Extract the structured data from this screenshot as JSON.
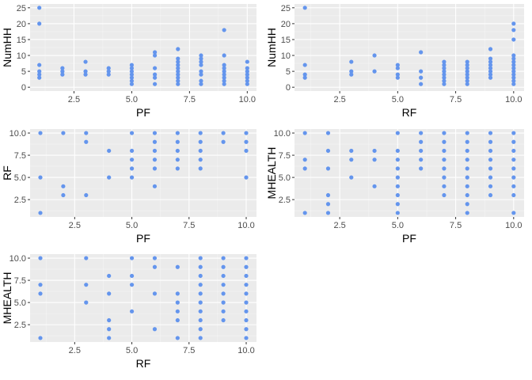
{
  "colors": {
    "panel_bg": "#EBEBEB",
    "grid_major": "#FFFFFF",
    "grid_minor": "#F5F5F5",
    "point": "#6495ED",
    "tick_text": "#4D4D4D",
    "axis_title": "#000000"
  },
  "chart_data": [
    {
      "type": "scatter",
      "xlabel": "PF",
      "ylabel": "NumHH",
      "xlim": [
        0.6,
        10.4
      ],
      "ylim": [
        -1.2,
        26.2
      ],
      "xticks": [
        2.5,
        5.0,
        7.5,
        10.0
      ],
      "xtick_labels": [
        "2.5",
        "5.0",
        "7.5",
        "10.0"
      ],
      "yticks": [
        0,
        5,
        10,
        15,
        20,
        25
      ],
      "ytick_labels": [
        "0",
        "5",
        "10",
        "15",
        "20",
        "25"
      ],
      "points": [
        [
          1,
          25
        ],
        [
          1,
          20
        ],
        [
          1,
          7
        ],
        [
          1,
          5
        ],
        [
          1,
          4
        ],
        [
          1,
          3
        ],
        [
          2,
          6
        ],
        [
          2,
          5
        ],
        [
          2,
          4
        ],
        [
          3,
          8
        ],
        [
          3,
          5
        ],
        [
          3,
          4
        ],
        [
          4,
          6
        ],
        [
          4,
          5
        ],
        [
          4,
          4
        ],
        [
          5,
          7
        ],
        [
          5,
          6
        ],
        [
          5,
          5
        ],
        [
          5,
          4
        ],
        [
          5,
          3
        ],
        [
          5,
          2
        ],
        [
          5,
          1
        ],
        [
          6,
          11
        ],
        [
          6,
          10
        ],
        [
          6,
          6
        ],
        [
          6,
          4
        ],
        [
          6,
          3
        ],
        [
          6,
          1
        ],
        [
          7,
          12
        ],
        [
          7,
          9
        ],
        [
          7,
          8
        ],
        [
          7,
          7
        ],
        [
          7,
          6
        ],
        [
          7,
          5
        ],
        [
          7,
          4
        ],
        [
          7,
          3
        ],
        [
          7,
          2
        ],
        [
          7,
          1
        ],
        [
          8,
          10
        ],
        [
          8,
          9
        ],
        [
          8,
          8
        ],
        [
          8,
          7
        ],
        [
          8,
          5
        ],
        [
          8,
          4
        ],
        [
          8,
          2
        ],
        [
          8,
          1
        ],
        [
          9,
          18
        ],
        [
          9,
          10
        ],
        [
          9,
          7
        ],
        [
          9,
          6
        ],
        [
          9,
          5
        ],
        [
          9,
          4
        ],
        [
          9,
          3
        ],
        [
          9,
          2
        ],
        [
          9,
          1
        ],
        [
          10,
          8
        ],
        [
          10,
          6
        ],
        [
          10,
          5
        ],
        [
          10,
          4
        ],
        [
          10,
          3
        ],
        [
          10,
          2
        ],
        [
          10,
          1
        ]
      ]
    },
    {
      "type": "scatter",
      "xlabel": "RF",
      "ylabel": "NumHH",
      "xlim": [
        0.55,
        10.45
      ],
      "ylim": [
        -1.2,
        26.2
      ],
      "xticks": [
        2.5,
        5.0,
        7.5,
        10.0
      ],
      "xtick_labels": [
        "2.5",
        "5.0",
        "7.5",
        "10.0"
      ],
      "yticks": [
        0,
        5,
        10,
        15,
        20,
        25
      ],
      "ytick_labels": [
        "0",
        "5",
        "10",
        "15",
        "20",
        "25"
      ],
      "points": [
        [
          1,
          25
        ],
        [
          1,
          7
        ],
        [
          1,
          4
        ],
        [
          1,
          3
        ],
        [
          3,
          8
        ],
        [
          3,
          5
        ],
        [
          3,
          4
        ],
        [
          4,
          10
        ],
        [
          4,
          5
        ],
        [
          5,
          7
        ],
        [
          5,
          6
        ],
        [
          5,
          4
        ],
        [
          5,
          3
        ],
        [
          6,
          11
        ],
        [
          6,
          5
        ],
        [
          6,
          3
        ],
        [
          6,
          1
        ],
        [
          7,
          8
        ],
        [
          7,
          7
        ],
        [
          7,
          6
        ],
        [
          7,
          5
        ],
        [
          7,
          4
        ],
        [
          7,
          3
        ],
        [
          7,
          2
        ],
        [
          7,
          1
        ],
        [
          8,
          8
        ],
        [
          8,
          7
        ],
        [
          8,
          6
        ],
        [
          8,
          5
        ],
        [
          8,
          4
        ],
        [
          8,
          3
        ],
        [
          8,
          2
        ],
        [
          8,
          1
        ],
        [
          9,
          12
        ],
        [
          9,
          9
        ],
        [
          9,
          8
        ],
        [
          9,
          7
        ],
        [
          9,
          6
        ],
        [
          9,
          5
        ],
        [
          9,
          4
        ],
        [
          9,
          3
        ],
        [
          10,
          20
        ],
        [
          10,
          18
        ],
        [
          10,
          15
        ],
        [
          10,
          10
        ],
        [
          10,
          9
        ],
        [
          10,
          8
        ],
        [
          10,
          7
        ],
        [
          10,
          6
        ],
        [
          10,
          5
        ],
        [
          10,
          4
        ],
        [
          10,
          3
        ],
        [
          10,
          2
        ],
        [
          10,
          1
        ]
      ]
    },
    {
      "type": "scatter",
      "xlabel": "PF",
      "ylabel": "RF",
      "xlim": [
        0.55,
        10.45
      ],
      "ylim": [
        0.55,
        10.45
      ],
      "xticks": [
        2.5,
        5.0,
        7.5,
        10.0
      ],
      "xtick_labels": [
        "2.5",
        "5.0",
        "7.5",
        "10.0"
      ],
      "yticks": [
        2.5,
        5.0,
        7.5,
        10.0
      ],
      "ytick_labels": [
        "2.5",
        "5.0",
        "7.5",
        "10.0"
      ],
      "points": [
        [
          1,
          10
        ],
        [
          1,
          5
        ],
        [
          1,
          1
        ],
        [
          2,
          10
        ],
        [
          2,
          4
        ],
        [
          2,
          3
        ],
        [
          3,
          10
        ],
        [
          3,
          9
        ],
        [
          3,
          3
        ],
        [
          4,
          8
        ],
        [
          4,
          5
        ],
        [
          5,
          10
        ],
        [
          5,
          8
        ],
        [
          5,
          7
        ],
        [
          5,
          6
        ],
        [
          5,
          5
        ],
        [
          6,
          10
        ],
        [
          6,
          9
        ],
        [
          6,
          8
        ],
        [
          6,
          7
        ],
        [
          6,
          6
        ],
        [
          6,
          4
        ],
        [
          7,
          10
        ],
        [
          7,
          9
        ],
        [
          7,
          8
        ],
        [
          7,
          7
        ],
        [
          7,
          6
        ],
        [
          8,
          10
        ],
        [
          8,
          9
        ],
        [
          8,
          8
        ],
        [
          8,
          7
        ],
        [
          8,
          6
        ],
        [
          9,
          10
        ],
        [
          9,
          9
        ],
        [
          10,
          10
        ],
        [
          10,
          9
        ],
        [
          10,
          8
        ],
        [
          10,
          5
        ]
      ]
    },
    {
      "type": "scatter",
      "xlabel": "PF",
      "ylabel": "MHEALTH",
      "xlim": [
        0.55,
        10.45
      ],
      "ylim": [
        0.55,
        10.45
      ],
      "xticks": [
        2.5,
        5.0,
        7.5,
        10.0
      ],
      "xtick_labels": [
        "2.5",
        "5.0",
        "7.5",
        "10.0"
      ],
      "yticks": [
        2.5,
        5.0,
        7.5,
        10.0
      ],
      "ytick_labels": [
        "2.5",
        "5.0",
        "7.5",
        "10.0"
      ],
      "points": [
        [
          1,
          10
        ],
        [
          1,
          7
        ],
        [
          1,
          6
        ],
        [
          1,
          1
        ],
        [
          2,
          10
        ],
        [
          2,
          8
        ],
        [
          2,
          6
        ],
        [
          2,
          3
        ],
        [
          2,
          2
        ],
        [
          2,
          1
        ],
        [
          3,
          8
        ],
        [
          3,
          7
        ],
        [
          3,
          5
        ],
        [
          4,
          8
        ],
        [
          4,
          7
        ],
        [
          4,
          4
        ],
        [
          5,
          10
        ],
        [
          5,
          8
        ],
        [
          5,
          7
        ],
        [
          5,
          6
        ],
        [
          5,
          5
        ],
        [
          5,
          4
        ],
        [
          5,
          3
        ],
        [
          5,
          2
        ],
        [
          5,
          1
        ],
        [
          6,
          10
        ],
        [
          6,
          9
        ],
        [
          6,
          8
        ],
        [
          6,
          7
        ],
        [
          6,
          6
        ],
        [
          7,
          10
        ],
        [
          7,
          9
        ],
        [
          7,
          8
        ],
        [
          7,
          7
        ],
        [
          7,
          6
        ],
        [
          7,
          5
        ],
        [
          7,
          4
        ],
        [
          7,
          3
        ],
        [
          8,
          10
        ],
        [
          8,
          9
        ],
        [
          8,
          8
        ],
        [
          8,
          7
        ],
        [
          8,
          6
        ],
        [
          8,
          5
        ],
        [
          8,
          4
        ],
        [
          8,
          3
        ],
        [
          8,
          2
        ],
        [
          8,
          1
        ],
        [
          9,
          10
        ],
        [
          9,
          9
        ],
        [
          9,
          8
        ],
        [
          9,
          7
        ],
        [
          9,
          6
        ],
        [
          9,
          5
        ],
        [
          9,
          4
        ],
        [
          9,
          3
        ],
        [
          10,
          10
        ],
        [
          10,
          9
        ],
        [
          10,
          8
        ],
        [
          10,
          7
        ],
        [
          10,
          6
        ],
        [
          10,
          5
        ],
        [
          10,
          4
        ],
        [
          10,
          3
        ],
        [
          10,
          1
        ]
      ]
    },
    {
      "type": "scatter",
      "xlabel": "RF",
      "ylabel": "MHEALTH",
      "xlim": [
        0.55,
        10.45
      ],
      "ylim": [
        0.55,
        10.45
      ],
      "xticks": [
        2.5,
        5.0,
        7.5,
        10.0
      ],
      "xtick_labels": [
        "2.5",
        "5.0",
        "7.5",
        "10.0"
      ],
      "yticks": [
        2.5,
        5.0,
        7.5,
        10.0
      ],
      "ytick_labels": [
        "2.5",
        "5.0",
        "7.5",
        "10.0"
      ],
      "points": [
        [
          1,
          10
        ],
        [
          1,
          7
        ],
        [
          1,
          6
        ],
        [
          1,
          1
        ],
        [
          3,
          10
        ],
        [
          3,
          7
        ],
        [
          3,
          5
        ],
        [
          4,
          8
        ],
        [
          4,
          6
        ],
        [
          4,
          3
        ],
        [
          4,
          2
        ],
        [
          4,
          1
        ],
        [
          5,
          10
        ],
        [
          5,
          8
        ],
        [
          5,
          7
        ],
        [
          5,
          4
        ],
        [
          6,
          10
        ],
        [
          6,
          9
        ],
        [
          6,
          6
        ],
        [
          6,
          2
        ],
        [
          7,
          9
        ],
        [
          7,
          6
        ],
        [
          7,
          5
        ],
        [
          7,
          4
        ],
        [
          7,
          3
        ],
        [
          7,
          1
        ],
        [
          8,
          10
        ],
        [
          8,
          9
        ],
        [
          8,
          8
        ],
        [
          8,
          7
        ],
        [
          8,
          6
        ],
        [
          8,
          5
        ],
        [
          8,
          4
        ],
        [
          8,
          3
        ],
        [
          8,
          2
        ],
        [
          8,
          1
        ],
        [
          9,
          10
        ],
        [
          9,
          9
        ],
        [
          9,
          8
        ],
        [
          9,
          7
        ],
        [
          9,
          6
        ],
        [
          9,
          5
        ],
        [
          9,
          4
        ],
        [
          9,
          3
        ],
        [
          10,
          10
        ],
        [
          10,
          9
        ],
        [
          10,
          8
        ],
        [
          10,
          7
        ],
        [
          10,
          6
        ],
        [
          10,
          5
        ],
        [
          10,
          4
        ],
        [
          10,
          3
        ],
        [
          10,
          2
        ],
        [
          10,
          1
        ]
      ]
    }
  ]
}
